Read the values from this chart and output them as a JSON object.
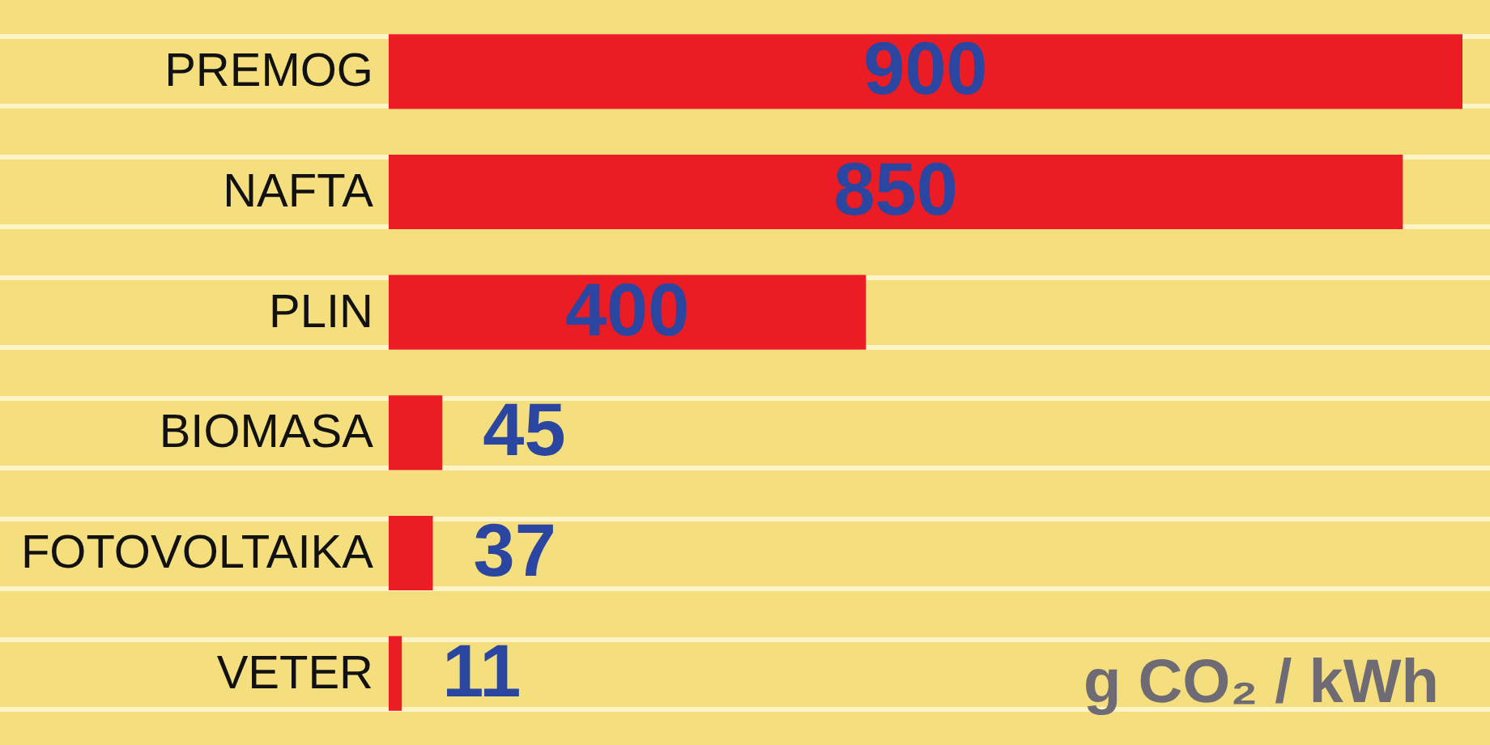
{
  "chart_data": {
    "type": "bar",
    "orientation": "horizontal",
    "categories": [
      "PREMOG",
      "NAFTA",
      "PLIN",
      "BIOMASA",
      "FOTOVOLTAIKA",
      "VETER"
    ],
    "values": [
      900,
      850,
      400,
      45,
      37,
      11
    ],
    "color": "#ec1c24",
    "data_labels": true,
    "xlabel": "g CO₂ / kWh"
  }
}
